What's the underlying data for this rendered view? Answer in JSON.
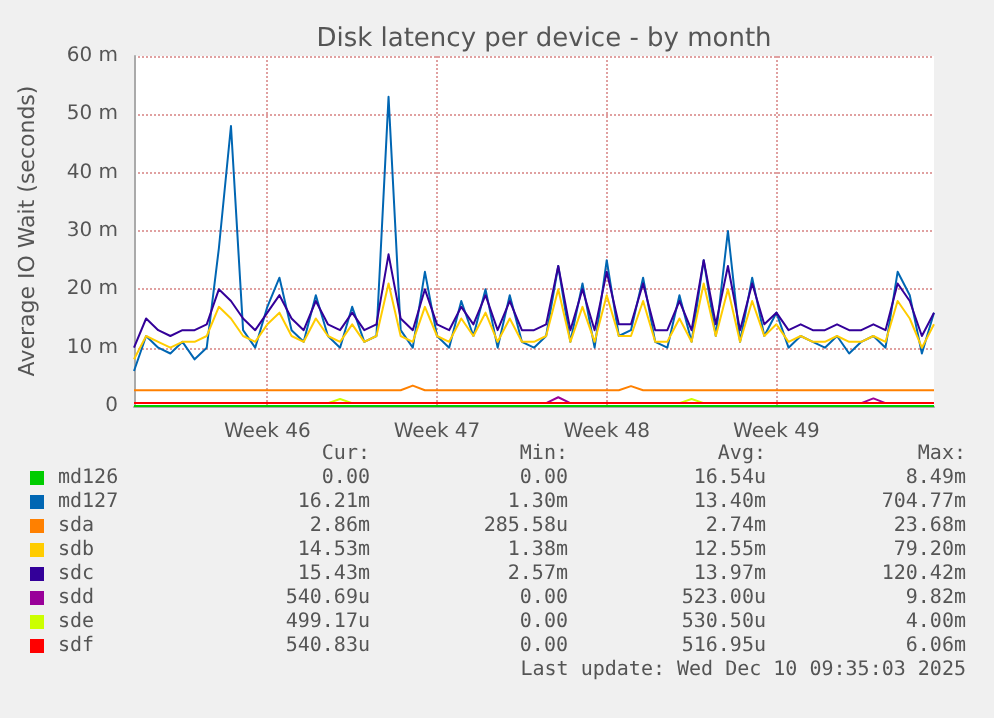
{
  "chart_data": {
    "type": "line",
    "title": "Disk latency per device - by month",
    "ylabel": "Average IO Wait (seconds)",
    "categories": [
      null,
      null,
      null,
      null,
      null,
      null,
      null,
      null,
      null,
      null,
      null,
      "Week 46",
      null,
      null,
      null,
      null,
      null,
      null,
      null,
      null,
      null,
      null,
      null,
      null,
      null,
      "Week 47",
      null,
      null,
      null,
      null,
      null,
      null,
      null,
      null,
      null,
      null,
      null,
      null,
      null,
      "Week 48",
      null,
      null,
      null,
      null,
      null,
      null,
      null,
      null,
      null,
      null,
      null,
      null,
      null,
      "Week 49",
      null,
      null,
      null,
      null,
      null,
      null,
      null,
      null,
      null,
      null,
      null,
      null,
      null
    ],
    "ylim": [
      0,
      60
    ],
    "yticks": [
      0,
      {
        "value": 10,
        "label": "10 m"
      },
      {
        "value": 20,
        "label": "20 m"
      },
      {
        "value": 30,
        "label": "30 m"
      },
      {
        "value": 40,
        "label": "40 m"
      },
      {
        "value": 50,
        "label": "50 m"
      },
      {
        "value": 60,
        "label": "60 m"
      }
    ],
    "grid": true,
    "legend": "bottom left",
    "series": [
      {
        "name": "md126",
        "color": "#00cc00",
        "values": [
          0,
          0,
          0,
          0,
          0,
          0,
          0,
          0,
          0,
          0,
          0,
          0,
          0,
          0,
          0,
          0,
          0,
          0,
          0,
          0,
          0,
          0,
          0,
          0,
          0,
          0,
          0,
          0,
          0,
          0,
          0,
          0,
          0,
          0,
          0,
          0,
          0,
          0,
          0,
          0,
          0,
          0,
          0,
          0,
          0,
          0,
          0,
          0,
          0,
          0,
          0,
          0,
          0,
          0,
          0,
          0,
          0,
          0,
          0,
          0,
          0,
          0,
          0,
          0,
          0,
          0,
          0
        ]
      },
      {
        "name": "md127",
        "color": "#0066b3",
        "values": [
          6,
          12,
          10,
          9,
          11,
          8,
          10,
          27,
          48,
          13,
          10,
          17,
          22,
          13,
          11,
          19,
          12,
          10,
          17,
          11,
          12,
          53,
          13,
          10,
          23,
          12,
          10,
          18,
          12,
          20,
          10,
          19,
          11,
          10,
          12,
          24,
          11,
          21,
          10,
          25,
          12,
          13,
          22,
          11,
          10,
          19,
          11,
          25,
          12,
          30,
          11,
          22,
          12,
          16,
          10,
          12,
          11,
          10,
          12,
          9,
          11,
          12,
          10,
          23,
          19,
          9,
          16
        ]
      },
      {
        "name": "sda",
        "color": "#ff8000",
        "values": [
          2.7,
          2.7,
          2.7,
          2.7,
          2.7,
          2.7,
          2.7,
          2.7,
          2.7,
          2.7,
          2.7,
          2.7,
          2.7,
          2.7,
          2.7,
          2.7,
          2.7,
          2.7,
          2.7,
          2.7,
          2.7,
          2.7,
          2.7,
          3.5,
          2.7,
          2.7,
          2.7,
          2.7,
          2.7,
          2.7,
          2.7,
          2.7,
          2.7,
          2.7,
          2.7,
          2.7,
          2.7,
          2.7,
          2.7,
          2.7,
          2.7,
          3.4,
          2.7,
          2.7,
          2.7,
          2.7,
          2.7,
          2.7,
          2.7,
          2.7,
          2.7,
          2.7,
          2.7,
          2.7,
          2.7,
          2.7,
          2.7,
          2.7,
          2.7,
          2.7,
          2.7,
          2.7,
          2.7,
          2.7,
          2.7,
          2.7,
          2.7
        ]
      },
      {
        "name": "sdb",
        "color": "#ffcc00",
        "values": [
          8,
          12,
          11,
          10,
          11,
          11,
          12,
          17,
          15,
          12,
          11,
          14,
          16,
          12,
          11,
          15,
          12,
          11,
          14,
          11,
          12,
          21,
          12,
          11,
          17,
          12,
          11,
          15,
          12,
          16,
          11,
          15,
          11,
          11,
          12,
          20,
          11,
          17,
          11,
          19,
          12,
          12,
          18,
          11,
          11,
          15,
          11,
          21,
          12,
          20,
          11,
          18,
          12,
          14,
          11,
          12,
          11,
          11,
          12,
          11,
          11,
          12,
          11,
          18,
          15,
          10,
          14
        ]
      },
      {
        "name": "sdc",
        "color": "#330099",
        "values": [
          10,
          15,
          13,
          12,
          13,
          13,
          14,
          20,
          18,
          15,
          13,
          16,
          19,
          15,
          13,
          18,
          14,
          13,
          16,
          13,
          14,
          26,
          15,
          13,
          20,
          14,
          13,
          17,
          14,
          19,
          13,
          18,
          13,
          13,
          14,
          24,
          13,
          20,
          13,
          23,
          14,
          14,
          21,
          13,
          13,
          18,
          13,
          25,
          14,
          24,
          13,
          21,
          14,
          16,
          13,
          14,
          13,
          13,
          14,
          13,
          13,
          14,
          13,
          21,
          18,
          12,
          16
        ]
      },
      {
        "name": "sdd",
        "color": "#990099",
        "values": [
          null,
          null,
          null,
          null,
          null,
          null,
          null,
          null,
          null,
          null,
          null,
          null,
          null,
          null,
          null,
          null,
          null,
          null,
          null,
          null,
          null,
          null,
          null,
          null,
          null,
          null,
          null,
          null,
          null,
          null,
          null,
          null,
          null,
          null,
          0.5,
          1.5,
          0.5,
          null,
          null,
          null,
          null,
          null,
          null,
          null,
          null,
          null,
          null,
          null,
          null,
          null,
          null,
          null,
          null,
          null,
          null,
          null,
          null,
          null,
          null,
          null,
          0.5,
          1.3,
          0.5,
          null,
          null,
          null,
          null
        ]
      },
      {
        "name": "sde",
        "color": "#ccff00",
        "values": [
          null,
          null,
          null,
          null,
          null,
          null,
          null,
          null,
          null,
          null,
          null,
          null,
          null,
          null,
          null,
          null,
          0.5,
          1.2,
          0.5,
          null,
          null,
          null,
          null,
          null,
          null,
          null,
          null,
          null,
          null,
          null,
          null,
          null,
          null,
          null,
          null,
          null,
          null,
          null,
          null,
          null,
          null,
          null,
          null,
          null,
          null,
          0.5,
          1.2,
          0.5,
          null,
          null,
          null,
          null,
          null,
          null,
          null,
          null,
          null,
          null,
          null,
          null,
          null,
          null,
          null,
          null,
          null,
          null,
          null
        ]
      },
      {
        "name": "sdf",
        "color": "#ff0000",
        "values": [
          0.5,
          0.5,
          0.5,
          0.5,
          0.5,
          0.5,
          0.5,
          0.5,
          0.5,
          0.5,
          0.5,
          0.5,
          0.5,
          0.5,
          0.5,
          0.5,
          0.5,
          0.5,
          0.5,
          0.5,
          0.5,
          0.5,
          0.5,
          0.5,
          0.5,
          0.5,
          0.5,
          0.5,
          0.5,
          0.5,
          0.5,
          0.5,
          0.5,
          0.5,
          0.5,
          0.5,
          0.5,
          0.5,
          0.5,
          0.5,
          0.5,
          0.5,
          0.5,
          0.5,
          0.5,
          0.5,
          0.5,
          0.5,
          0.5,
          0.5,
          0.5,
          0.5,
          0.5,
          0.5,
          0.5,
          0.5,
          0.5,
          0.5,
          0.5,
          0.5,
          0.5,
          0.5,
          0.5,
          0.5,
          0.5,
          0.5,
          0.5
        ]
      }
    ],
    "annotations": [
      "Cur:",
      "Min:",
      "Avg:",
      "Max:",
      "0.00",
      "0.00",
      "16.54u",
      "8.49m",
      "16.21m",
      "1.30m",
      "13.40m",
      "704.77m",
      "2.86m",
      "285.58u",
      "2.74m",
      "23.68m",
      "14.53m",
      "1.38m",
      "12.55m",
      "79.20m",
      "15.43m",
      "2.57m",
      "13.97m",
      "120.42m",
      "540.69u",
      "0.00",
      "523.00u",
      "9.82m",
      "499.17u",
      "0.00",
      "530.50u",
      "4.00m",
      "540.83u",
      "0.00",
      "516.95u",
      "6.06m",
      "Last update: Wed Dec 10 09:35:03 2025"
    ]
  }
}
